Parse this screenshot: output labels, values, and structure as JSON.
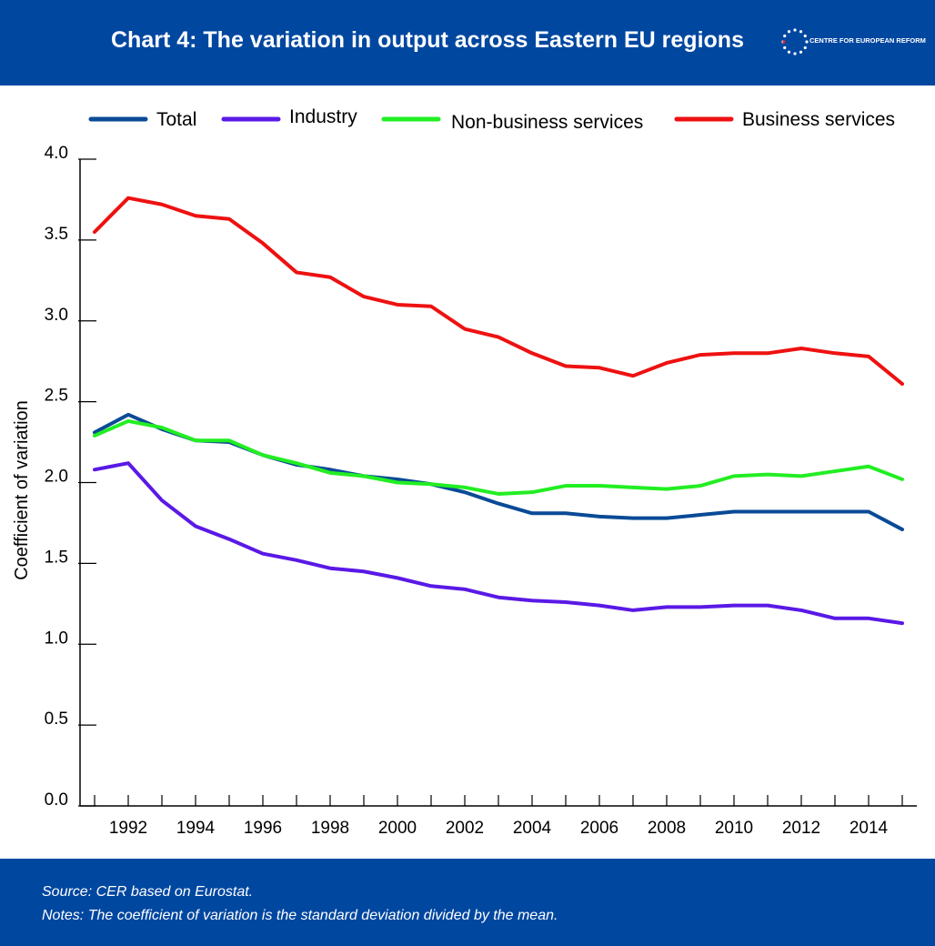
{
  "header": {
    "title": "Chart 4: The variation in output across Eastern EU regions",
    "logo_text": "CENTRE FOR EUROPEAN REFORM"
  },
  "footer": {
    "source": "Source:  CER based on Eurostat.",
    "notes": "Notes: The coefficient of variation is the standard deviation divided by the mean."
  },
  "colors": {
    "header_bg": "#0047a0",
    "total": "#0a4a96",
    "industry": "#5a19e6",
    "non_business": "#22ee22",
    "business": "#ee1111",
    "star": "#ffffff",
    "star_accent": "#e8202a"
  },
  "chart_data": {
    "type": "line",
    "x": [
      1991,
      1992,
      1993,
      1994,
      1995,
      1996,
      1997,
      1998,
      1999,
      2000,
      2001,
      2002,
      2003,
      2004,
      2005,
      2006,
      2007,
      2008,
      2009,
      2010,
      2011,
      2012,
      2013,
      2014,
      2015
    ],
    "x_tick_labels": [
      "1992",
      "1994",
      "1996",
      "1998",
      "2000",
      "2002",
      "2004",
      "2006",
      "2008",
      "2010",
      "2012",
      "2014"
    ],
    "ylabel": "Coefficient of variation",
    "ylim": [
      0,
      4
    ],
    "y_tick_labels": [
      "0.0",
      "0.5",
      "1.0",
      "1.5",
      "2.0",
      "2.5",
      "3.0",
      "3.5",
      "4.0"
    ],
    "legend_position": "top",
    "grid": false,
    "series": [
      {
        "name": "Total",
        "color_key": "total",
        "values": [
          2.31,
          2.42,
          2.33,
          2.26,
          2.25,
          2.17,
          2.11,
          2.08,
          2.04,
          2.02,
          1.99,
          1.94,
          1.87,
          1.81,
          1.81,
          1.79,
          1.78,
          1.78,
          1.8,
          1.82,
          1.82,
          1.82,
          1.82,
          1.82,
          1.71
        ]
      },
      {
        "name": "Industry",
        "color_key": "industry",
        "values": [
          2.08,
          2.12,
          1.89,
          1.73,
          1.65,
          1.56,
          1.52,
          1.47,
          1.45,
          1.41,
          1.36,
          1.34,
          1.29,
          1.27,
          1.26,
          1.24,
          1.21,
          1.23,
          1.23,
          1.24,
          1.24,
          1.21,
          1.16,
          1.16,
          1.13
        ]
      },
      {
        "name": "Non-business services",
        "color_key": "non_business",
        "values": [
          2.29,
          2.38,
          2.34,
          2.26,
          2.26,
          2.17,
          2.12,
          2.06,
          2.04,
          2.0,
          1.99,
          1.97,
          1.93,
          1.94,
          1.98,
          1.98,
          1.97,
          1.96,
          1.98,
          2.04,
          2.05,
          2.04,
          2.07,
          2.1,
          2.02
        ]
      },
      {
        "name": "Business services",
        "color_key": "business",
        "values": [
          3.55,
          3.76,
          3.72,
          3.65,
          3.63,
          3.48,
          3.3,
          3.27,
          3.15,
          3.1,
          3.09,
          2.95,
          2.9,
          2.8,
          2.72,
          2.71,
          2.66,
          2.74,
          2.79,
          2.8,
          2.8,
          2.83,
          2.8,
          2.78,
          2.61
        ]
      }
    ]
  }
}
